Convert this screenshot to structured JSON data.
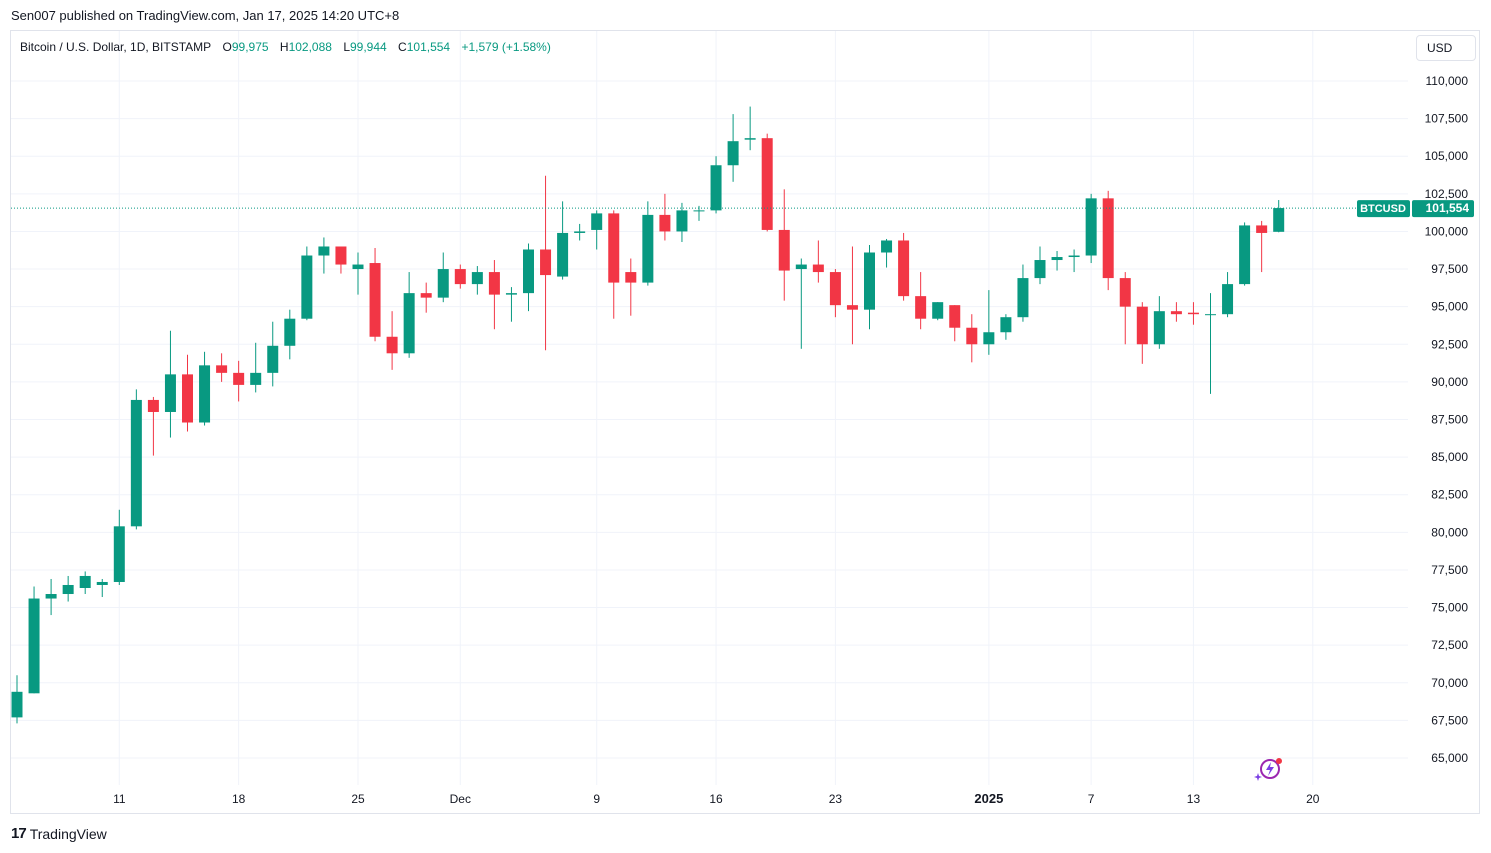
{
  "publisher_line": "Sen007 published on TradingView.com, Jan 17, 2025 14:20 UTC+8",
  "legend": {
    "title": "Bitcoin / U.S. Dollar, 1D, BITSTAMP",
    "o_label": "O",
    "o_value": "99,975",
    "h_label": "H",
    "h_value": "102,088",
    "l_label": "L",
    "l_value": "99,944",
    "c_label": "C",
    "c_value": "101,554",
    "change": "+1,579 (+1.58%)"
  },
  "currency_button": "USD",
  "footer": {
    "brand": "TradingView",
    "logo_glyph": "17"
  },
  "last_price": {
    "symbol": "BTCUSD",
    "value": "101,554",
    "numeric": 101554
  },
  "colors": {
    "up": "#089981",
    "down": "#f23645",
    "grid": "#f0f3fa",
    "axis_text": "#131722"
  },
  "chart_data": {
    "type": "candlestick",
    "title": "Bitcoin / U.S. Dollar, 1D, BITSTAMP",
    "ylim": [
      63500,
      112500
    ],
    "y_ticks": [
      {
        "v": 110000,
        "label": "110,000"
      },
      {
        "v": 107500,
        "label": "107,500"
      },
      {
        "v": 105000,
        "label": "105,000"
      },
      {
        "v": 102500,
        "label": "102,500"
      },
      {
        "v": 100000,
        "label": "100,000"
      },
      {
        "v": 97500,
        "label": "97,500"
      },
      {
        "v": 95000,
        "label": "95,000"
      },
      {
        "v": 92500,
        "label": "92,500"
      },
      {
        "v": 90000,
        "label": "90,000"
      },
      {
        "v": 87500,
        "label": "87,500"
      },
      {
        "v": 85000,
        "label": "85,000"
      },
      {
        "v": 82500,
        "label": "82,500"
      },
      {
        "v": 80000,
        "label": "80,000"
      },
      {
        "v": 77500,
        "label": "77,500"
      },
      {
        "v": 75000,
        "label": "75,000"
      },
      {
        "v": 72500,
        "label": "72,500"
      },
      {
        "v": 70000,
        "label": "70,000"
      },
      {
        "v": 67500,
        "label": "67,500"
      },
      {
        "v": 65000,
        "label": "65,000"
      }
    ],
    "x_ticks": [
      {
        "i": 6,
        "label": "11",
        "bold": false
      },
      {
        "i": 13,
        "label": "18",
        "bold": false
      },
      {
        "i": 20,
        "label": "25",
        "bold": false
      },
      {
        "i": 26,
        "label": "Dec",
        "bold": false
      },
      {
        "i": 34,
        "label": "9",
        "bold": false
      },
      {
        "i": 41,
        "label": "16",
        "bold": false
      },
      {
        "i": 48,
        "label": "23",
        "bold": false
      },
      {
        "i": 57,
        "label": "2025",
        "bold": true
      },
      {
        "i": 63,
        "label": "7",
        "bold": false
      },
      {
        "i": 69,
        "label": "13",
        "bold": false
      },
      {
        "i": 76,
        "label": "20",
        "bold": false
      }
    ],
    "candles": [
      {
        "o": 67700,
        "h": 70500,
        "l": 67300,
        "c": 69400
      },
      {
        "o": 69300,
        "h": 76400,
        "l": 69300,
        "c": 75600
      },
      {
        "o": 75600,
        "h": 76900,
        "l": 74500,
        "c": 75900
      },
      {
        "o": 75900,
        "h": 77100,
        "l": 75400,
        "c": 76500
      },
      {
        "o": 76300,
        "h": 77400,
        "l": 75900,
        "c": 77100
      },
      {
        "o": 76500,
        "h": 76900,
        "l": 75700,
        "c": 76700
      },
      {
        "o": 76700,
        "h": 81500,
        "l": 76500,
        "c": 80400
      },
      {
        "o": 80400,
        "h": 89500,
        "l": 80200,
        "c": 88800
      },
      {
        "o": 88800,
        "h": 89000,
        "l": 85100,
        "c": 88000
      },
      {
        "o": 88000,
        "h": 93400,
        "l": 86300,
        "c": 90500
      },
      {
        "o": 90500,
        "h": 91800,
        "l": 86700,
        "c": 87300
      },
      {
        "o": 87300,
        "h": 92000,
        "l": 87100,
        "c": 91100
      },
      {
        "o": 91100,
        "h": 91900,
        "l": 90000,
        "c": 90600
      },
      {
        "o": 90600,
        "h": 91400,
        "l": 88700,
        "c": 89800
      },
      {
        "o": 89800,
        "h": 92600,
        "l": 89300,
        "c": 90600
      },
      {
        "o": 90600,
        "h": 94000,
        "l": 89700,
        "c": 92400
      },
      {
        "o": 92400,
        "h": 94800,
        "l": 91500,
        "c": 94200
      },
      {
        "o": 94200,
        "h": 99000,
        "l": 94100,
        "c": 98400
      },
      {
        "o": 98400,
        "h": 99600,
        "l": 97200,
        "c": 99000
      },
      {
        "o": 99000,
        "h": 99000,
        "l": 97200,
        "c": 97800
      },
      {
        "o": 97500,
        "h": 98600,
        "l": 95800,
        "c": 97800
      },
      {
        "o": 97900,
        "h": 98900,
        "l": 92700,
        "c": 93000
      },
      {
        "o": 93000,
        "h": 94700,
        "l": 90800,
        "c": 91900
      },
      {
        "o": 91900,
        "h": 97300,
        "l": 91600,
        "c": 95900
      },
      {
        "o": 95900,
        "h": 96600,
        "l": 94600,
        "c": 95600
      },
      {
        "o": 95600,
        "h": 98600,
        "l": 95300,
        "c": 97500
      },
      {
        "o": 97500,
        "h": 97800,
        "l": 96200,
        "c": 96500
      },
      {
        "o": 96500,
        "h": 97700,
        "l": 95800,
        "c": 97300
      },
      {
        "o": 97300,
        "h": 98100,
        "l": 93500,
        "c": 95800
      },
      {
        "o": 95800,
        "h": 96300,
        "l": 94000,
        "c": 95900
      },
      {
        "o": 95900,
        "h": 99200,
        "l": 94700,
        "c": 98800
      },
      {
        "o": 98800,
        "h": 103700,
        "l": 92100,
        "c": 97100
      },
      {
        "o": 97000,
        "h": 102000,
        "l": 96800,
        "c": 99900
      },
      {
        "o": 99900,
        "h": 100500,
        "l": 99400,
        "c": 100000
      },
      {
        "o": 100100,
        "h": 101400,
        "l": 98800,
        "c": 101200
      },
      {
        "o": 101200,
        "h": 101400,
        "l": 94200,
        "c": 96600
      },
      {
        "o": 97300,
        "h": 98200,
        "l": 94400,
        "c": 96600
      },
      {
        "o": 96600,
        "h": 102000,
        "l": 96400,
        "c": 101100
      },
      {
        "o": 101100,
        "h": 102500,
        "l": 99400,
        "c": 100000
      },
      {
        "o": 100000,
        "h": 101900,
        "l": 99300,
        "c": 101400
      },
      {
        "o": 101400,
        "h": 101700,
        "l": 100700,
        "c": 101400
      },
      {
        "o": 101400,
        "h": 105000,
        "l": 101200,
        "c": 104400
      },
      {
        "o": 104400,
        "h": 107800,
        "l": 103300,
        "c": 106000
      },
      {
        "o": 106100,
        "h": 108300,
        "l": 105400,
        "c": 106200
      },
      {
        "o": 106200,
        "h": 106500,
        "l": 100000,
        "c": 100100
      },
      {
        "o": 100100,
        "h": 102800,
        "l": 95400,
        "c": 97400
      },
      {
        "o": 97500,
        "h": 98200,
        "l": 92200,
        "c": 97800
      },
      {
        "o": 97800,
        "h": 99400,
        "l": 96600,
        "c": 97300
      },
      {
        "o": 97300,
        "h": 97500,
        "l": 94300,
        "c": 95100
      },
      {
        "o": 95100,
        "h": 99000,
        "l": 92500,
        "c": 94800
      },
      {
        "o": 94800,
        "h": 99100,
        "l": 93500,
        "c": 98600
      },
      {
        "o": 98600,
        "h": 99500,
        "l": 97600,
        "c": 99400
      },
      {
        "o": 99400,
        "h": 99900,
        "l": 95400,
        "c": 95700
      },
      {
        "o": 95700,
        "h": 97300,
        "l": 93500,
        "c": 94200
      },
      {
        "o": 94200,
        "h": 95300,
        "l": 94100,
        "c": 95300
      },
      {
        "o": 95100,
        "h": 95100,
        "l": 92700,
        "c": 93600
      },
      {
        "o": 93600,
        "h": 94500,
        "l": 91300,
        "c": 92500
      },
      {
        "o": 92500,
        "h": 96100,
        "l": 91800,
        "c": 93300
      },
      {
        "o": 93300,
        "h": 94500,
        "l": 92800,
        "c": 94300
      },
      {
        "o": 94300,
        "h": 97800,
        "l": 94000,
        "c": 96900
      },
      {
        "o": 96900,
        "h": 99000,
        "l": 96500,
        "c": 98100
      },
      {
        "o": 98100,
        "h": 98700,
        "l": 97400,
        "c": 98300
      },
      {
        "o": 98300,
        "h": 98800,
        "l": 97300,
        "c": 98400
      },
      {
        "o": 98400,
        "h": 102500,
        "l": 97900,
        "c": 102200
      },
      {
        "o": 102200,
        "h": 102700,
        "l": 96100,
        "c": 96900
      },
      {
        "o": 96900,
        "h": 97300,
        "l": 92500,
        "c": 95000
      },
      {
        "o": 95000,
        "h": 95300,
        "l": 91200,
        "c": 92500
      },
      {
        "o": 92500,
        "h": 95700,
        "l": 92200,
        "c": 94700
      },
      {
        "o": 94700,
        "h": 95300,
        "l": 94000,
        "c": 94500
      },
      {
        "o": 94600,
        "h": 95300,
        "l": 93800,
        "c": 94500
      },
      {
        "o": 94500,
        "h": 95900,
        "l": 89200,
        "c": 94500
      },
      {
        "o": 94500,
        "h": 97300,
        "l": 94300,
        "c": 96500
      },
      {
        "o": 96500,
        "h": 100600,
        "l": 96400,
        "c": 100400
      },
      {
        "o": 100400,
        "h": 100700,
        "l": 97300,
        "c": 99900
      },
      {
        "o": 99975,
        "h": 102088,
        "l": 99944,
        "c": 101554
      }
    ]
  }
}
